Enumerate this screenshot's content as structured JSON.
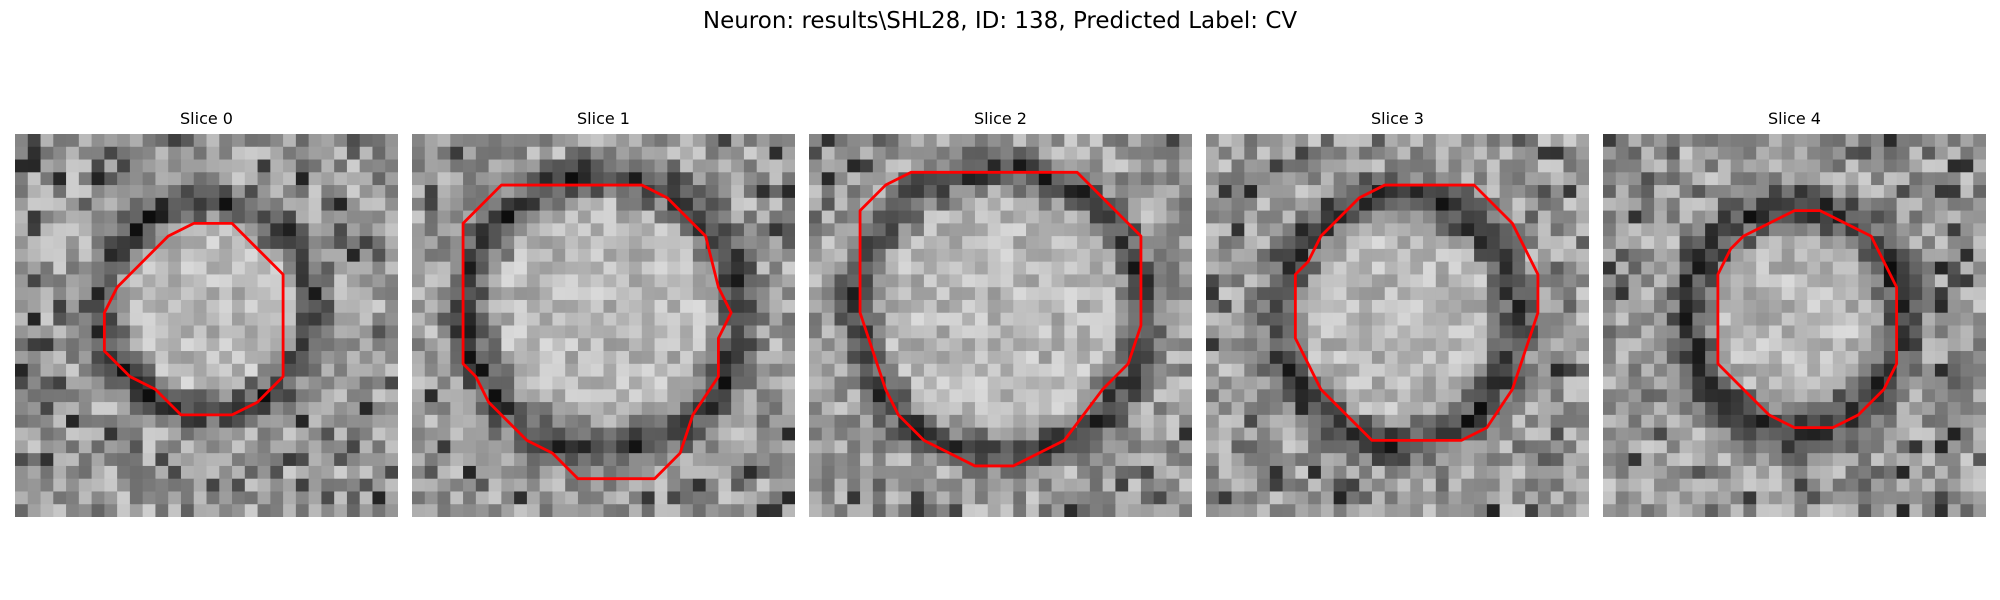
{
  "figure": {
    "title": "Neuron: results\\SHL28, ID: 138, Predicted Label: CV",
    "contour_color": "#ff0000"
  },
  "panels": [
    {
      "title": "Slice 0"
    },
    {
      "title": "Slice 1"
    },
    {
      "title": "Slice 2"
    },
    {
      "title": "Slice 3"
    },
    {
      "title": "Slice 4"
    }
  ]
}
